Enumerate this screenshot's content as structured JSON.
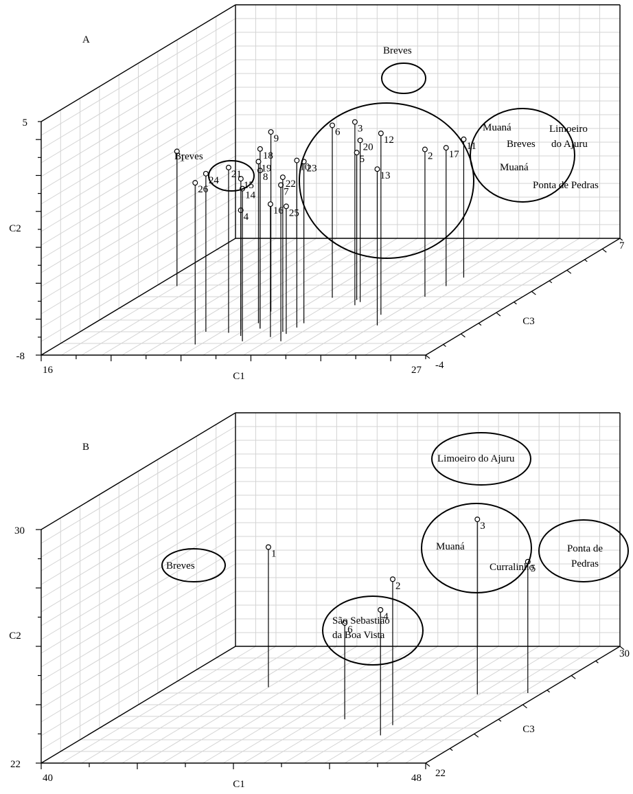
{
  "chart_data": [
    {
      "type": "scatter3d",
      "panel_label": "A",
      "xlabel": "C1",
      "ylabel": "C2",
      "zlabel": "C3",
      "xlim": [
        16,
        27
      ],
      "ylim": [
        -8,
        5
      ],
      "zlim": [
        -4,
        7
      ],
      "tick_labels": {
        "x_min": "16",
        "x_max": "27",
        "y_min": "-8",
        "y_max": "5",
        "z_min": "-4",
        "z_max": "7"
      },
      "points": [
        {
          "id": "1",
          "x": 16.6,
          "y": -0.5,
          "z": 2.5
        },
        {
          "id": "2",
          "x": 24.2,
          "y": 0.2,
          "z": 1.5
        },
        {
          "id": "3",
          "x": 22.6,
          "y": 2.2,
          "z": 0.7
        },
        {
          "id": "4",
          "x": 20.8,
          "y": -1.0,
          "z": -2.2
        },
        {
          "id": "5",
          "x": 22.4,
          "y": 0.2,
          "z": 1.2
        },
        {
          "id": "6",
          "x": 21.6,
          "y": 1.6,
          "z": 1.4
        },
        {
          "id": "7",
          "x": 22.2,
          "y": 0.7,
          "z": -2.7
        },
        {
          "id": "8",
          "x": 21.0,
          "y": 0.8,
          "z": -1.5
        },
        {
          "id": "9",
          "x": 20.5,
          "y": 2.0,
          "z": 0.1
        },
        {
          "id": "10",
          "x": 22.0,
          "y": 1.3,
          "z": -1.4
        },
        {
          "id": "11",
          "x": 24.4,
          "y": -0.3,
          "z": 3.3
        },
        {
          "id": "12",
          "x": 23.8,
          "y": 2.1,
          "z": -0.2
        },
        {
          "id": "13",
          "x": 24.2,
          "y": 0.7,
          "z": -1.2
        },
        {
          "id": "14",
          "x": 21.1,
          "y": 0.5,
          "z": -2.7
        },
        {
          "id": "15",
          "x": 20.5,
          "y": 0.4,
          "z": -1.6
        },
        {
          "id": "16",
          "x": 21.7,
          "y": -0.6,
          "z": -2.3
        },
        {
          "id": "17",
          "x": 24.3,
          "y": -0.3,
          "z": 2.5
        },
        {
          "id": "18",
          "x": 21.0,
          "y": 2.0,
          "z": -1.5
        },
        {
          "id": "19",
          "x": 20.7,
          "y": 1.0,
          "z": -1.0
        },
        {
          "id": "20",
          "x": 22.6,
          "y": 1.0,
          "z": 1.0
        },
        {
          "id": "21",
          "x": 20.3,
          "y": 1.2,
          "z": -1.9
        },
        {
          "id": "22",
          "x": 21.8,
          "y": 0.6,
          "z": -1.8
        },
        {
          "id": "23",
          "x": 22.0,
          "y": 1.0,
          "z": -1.0
        },
        {
          "id": "24",
          "x": 19.6,
          "y": 0.8,
          "z": -1.8
        },
        {
          "id": "25",
          "x": 22.0,
          "y": -0.9,
          "z": -2.0
        },
        {
          "id": "26",
          "x": 19.9,
          "y": 1.0,
          "z": -3.0
        }
      ],
      "annotations": [
        "Breves",
        "Breves",
        "Muaná",
        "Breves",
        "Limoeiro",
        "do Ajuru",
        "Muaná",
        "Ponta de Pedras"
      ]
    },
    {
      "type": "scatter3d",
      "panel_label": "B",
      "xlabel": "C1",
      "ylabel": "C2",
      "zlabel": "C3",
      "xlim": [
        40,
        48
      ],
      "ylim": [
        22,
        30
      ],
      "zlim": [
        22,
        30
      ],
      "tick_labels": {
        "x_min": "40",
        "x_max": "48",
        "y_min": "22",
        "y_max": "30",
        "z_min": "22",
        "z_max": "30"
      },
      "points": [
        {
          "id": "1",
          "x": 42.1,
          "y": 26.8,
          "z": 27.2
        },
        {
          "id": "2",
          "x": 46.0,
          "y": 27.0,
          "z": 24.6
        },
        {
          "id": "3",
          "x": 46.7,
          "y": 28.0,
          "z": 26.7
        },
        {
          "id": "4",
          "x": 46.1,
          "y": 26.3,
          "z": 23.9
        },
        {
          "id": "5",
          "x": 47.7,
          "y": 26.5,
          "z": 26.8
        },
        {
          "id": "6",
          "x": 44.8,
          "y": 25.3,
          "z": 25.0
        }
      ],
      "annotations": [
        "Breves",
        "Limoeiro do Ajuru",
        "Muaná",
        "Curralinho",
        "Ponta de",
        "Pedras",
        "São Sebastião",
        "da Boa Vista"
      ]
    }
  ]
}
